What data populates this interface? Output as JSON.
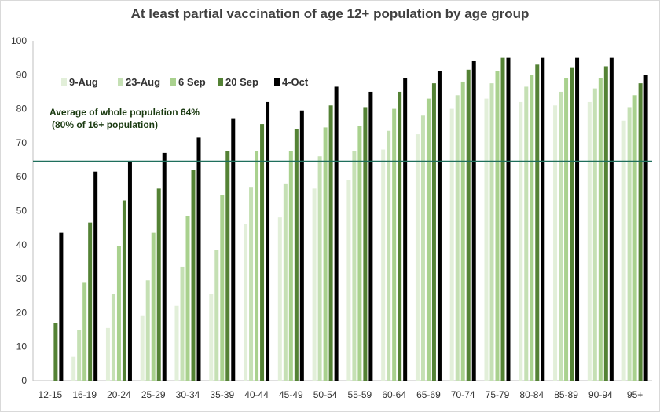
{
  "chart_data": {
    "type": "bar",
    "title": "At least partial vaccination of age 12+ population by age group",
    "xlabel": "",
    "ylabel": "",
    "ylim": [
      0,
      100
    ],
    "yticks": [
      0,
      10,
      20,
      30,
      40,
      50,
      60,
      70,
      80,
      90,
      100
    ],
    "grid": false,
    "legend_position": "top-left",
    "categories": [
      "12-15",
      "16-19",
      "20-24",
      "25-29",
      "30-34",
      "35-39",
      "40-44",
      "45-49",
      "50-54",
      "55-59",
      "60-64",
      "65-69",
      "70-74",
      "75-79",
      "80-84",
      "85-89",
      "90-94",
      "95+"
    ],
    "series": [
      {
        "name": "9-Aug",
        "color": "#e2efd9",
        "values": [
          0,
          7,
          15.5,
          19,
          22,
          25.5,
          46,
          48,
          56.5,
          59,
          68,
          72.5,
          80,
          83,
          82,
          81,
          82,
          76.5
        ]
      },
      {
        "name": "23-Aug",
        "color": "#c5e0b4",
        "values": [
          0,
          15,
          25.5,
          29.5,
          33.5,
          38.5,
          57,
          58,
          66,
          67.5,
          73.5,
          78,
          84,
          87.5,
          86.5,
          85,
          86,
          80.5
        ]
      },
      {
        "name": "6 Sep",
        "color": "#a9d18e",
        "values": [
          0,
          29,
          39.5,
          43.5,
          48.5,
          54.5,
          67.5,
          67.5,
          74.5,
          75,
          80,
          83,
          88,
          91,
          90,
          89,
          89,
          84
        ]
      },
      {
        "name": "20 Sep",
        "color": "#548235",
        "values": [
          17,
          46.5,
          53,
          56.5,
          62,
          67.5,
          75.5,
          74,
          81,
          80.5,
          85,
          87.5,
          91.5,
          95,
          93,
          92,
          92.5,
          87.5
        ]
      },
      {
        "name": "4-Oct",
        "color": "#000000",
        "values": [
          43.5,
          61.5,
          64.5,
          67,
          71.5,
          77,
          82,
          79.5,
          86.5,
          85,
          89,
          91,
          94,
          95,
          95,
          95,
          95,
          90
        ]
      }
    ],
    "reference_line": {
      "value": 64.5,
      "color": "#1f6f5c",
      "label_line1": "Average of whole population 64%",
      "label_line2": "(80% of 16+ population)"
    }
  }
}
